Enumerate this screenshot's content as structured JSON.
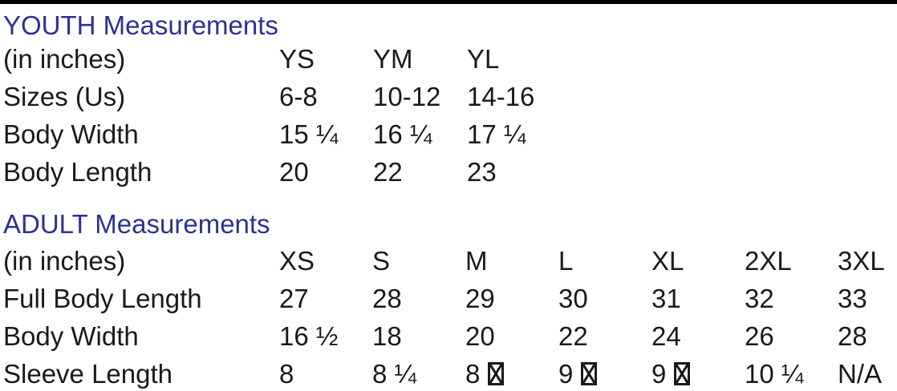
{
  "page": {
    "top_bar_color": "#000000",
    "background_color": "#ffffff",
    "heading_color": "#2e3192",
    "text_color": "#1a1a1a"
  },
  "youth": {
    "title": "YOUTH Measurements",
    "unit_label": "(in inches)",
    "columns": [
      "YS",
      "YM",
      "YL"
    ],
    "rows": [
      {
        "label": "Sizes (Us)",
        "values": [
          "6-8",
          "10-12",
          "14-16"
        ]
      },
      {
        "label": "Body Width",
        "values": [
          "15 ¼",
          "16 ¼",
          "17 ¼"
        ]
      },
      {
        "label": "Body Length",
        "values": [
          "20",
          "22",
          "23"
        ]
      }
    ]
  },
  "adult": {
    "title": "ADULT Measurements",
    "unit_label": "(in inches)",
    "columns": [
      "XS",
      "S",
      "M",
      "L",
      "XL",
      "2XL",
      "3XL"
    ],
    "rows": [
      {
        "label": "Full Body Length",
        "values": [
          "27",
          "28",
          "29",
          "30",
          "31",
          "32",
          "33"
        ]
      },
      {
        "label": "Body Width",
        "values": [
          "16 ½",
          "18",
          "20",
          "22",
          "24",
          "26",
          "28"
        ]
      },
      {
        "label": "Sleeve Length",
        "values": [
          "8",
          "8 ¼",
          "8 ⊠",
          "9 ⊠",
          "9 ⊠",
          "10 ¼",
          "N/A"
        ]
      }
    ]
  }
}
